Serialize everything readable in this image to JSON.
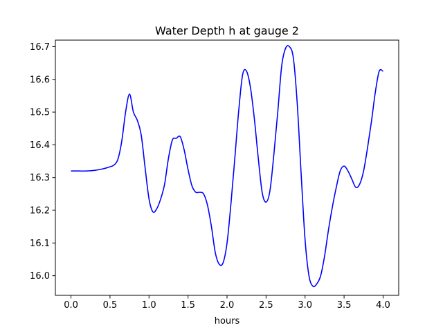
{
  "chart_data": {
    "type": "line",
    "title": "Water Depth h at gauge 2",
    "xlabel": "hours",
    "ylabel": "",
    "xlim": [
      -0.2,
      4.2
    ],
    "ylim": [
      15.94,
      16.72
    ],
    "grid": false,
    "xticks": [
      0.0,
      0.5,
      1.0,
      1.5,
      2.0,
      2.5,
      3.0,
      3.5,
      4.0
    ],
    "xtick_labels": [
      "0.0",
      "0.5",
      "1.0",
      "1.5",
      "2.0",
      "2.5",
      "3.0",
      "3.5",
      "4.0"
    ],
    "yticks": [
      16.0,
      16.1,
      16.2,
      16.3,
      16.4,
      16.5,
      16.6,
      16.7
    ],
    "ytick_labels": [
      "16.0",
      "16.1",
      "16.2",
      "16.3",
      "16.4",
      "16.5",
      "16.6",
      "16.7"
    ],
    "series": [
      {
        "color": "#0000ff",
        "x": [
          0.0,
          0.1,
          0.2,
          0.3,
          0.4,
          0.5,
          0.55,
          0.6,
          0.65,
          0.7,
          0.75,
          0.8,
          0.85,
          0.9,
          0.95,
          1.0,
          1.05,
          1.1,
          1.15,
          1.2,
          1.25,
          1.3,
          1.35,
          1.4,
          1.45,
          1.5,
          1.55,
          1.6,
          1.65,
          1.7,
          1.75,
          1.8,
          1.85,
          1.9,
          1.95,
          2.0,
          2.05,
          2.1,
          2.15,
          2.2,
          2.25,
          2.3,
          2.35,
          2.4,
          2.45,
          2.5,
          2.55,
          2.6,
          2.65,
          2.7,
          2.75,
          2.8,
          2.85,
          2.9,
          2.95,
          3.0,
          3.05,
          3.1,
          3.15,
          3.2,
          3.25,
          3.3,
          3.35,
          3.4,
          3.45,
          3.5,
          3.55,
          3.6,
          3.65,
          3.7,
          3.75,
          3.8,
          3.85,
          3.9,
          3.95,
          4.0
        ],
        "y": [
          16.32,
          16.32,
          16.32,
          16.322,
          16.326,
          16.333,
          16.338,
          16.355,
          16.41,
          16.5,
          16.555,
          16.5,
          16.475,
          16.43,
          16.33,
          16.235,
          16.195,
          16.205,
          16.235,
          16.28,
          16.36,
          16.415,
          16.42,
          16.425,
          16.385,
          16.325,
          16.275,
          16.255,
          16.255,
          16.25,
          16.215,
          16.15,
          16.07,
          16.035,
          16.04,
          16.1,
          16.22,
          16.36,
          16.505,
          16.615,
          16.625,
          16.575,
          16.48,
          16.36,
          16.255,
          16.225,
          16.26,
          16.37,
          16.5,
          16.64,
          16.695,
          16.7,
          16.665,
          16.525,
          16.31,
          16.11,
          16.0,
          15.968,
          15.975,
          16.0,
          16.06,
          16.14,
          16.21,
          16.27,
          16.32,
          16.335,
          16.32,
          16.295,
          16.27,
          16.28,
          16.32,
          16.39,
          16.47,
          16.56,
          16.625,
          16.625
        ]
      }
    ]
  }
}
